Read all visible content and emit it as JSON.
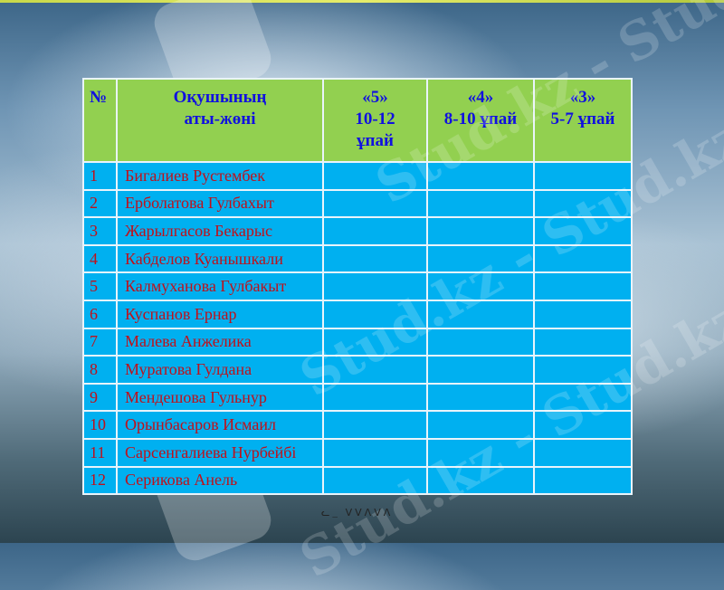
{
  "table": {
    "headers": [
      "№",
      "Оқушының\nаты-жөні",
      "«5»\n10-12\nұпай",
      "«4»\n8-10 ұпай",
      "«3»\n5-7 ұпай"
    ],
    "rows": [
      {
        "num": "1",
        "name": "Бигалиев Рустембек"
      },
      {
        "num": "2",
        "name": "Ерболатова Гулбахыт"
      },
      {
        "num": "3",
        "name": "Жарылгасов Бекарыс"
      },
      {
        "num": "4",
        "name": "Кабделов Куанышкали"
      },
      {
        "num": "5",
        "name": "Калмуханова Гулбакыт"
      },
      {
        "num": "6",
        "name": "Куспанов Ернар"
      },
      {
        "num": "7",
        "name": "Малева Анжелика"
      },
      {
        "num": "8",
        "name": "Муратова Гулдана"
      },
      {
        "num": "9",
        "name": "Мендешова Гульнур"
      },
      {
        "num": "10",
        "name": "Орынбасаров Исмаил"
      },
      {
        "num": "11",
        "name": "Сарсенгалиева Нурбейбі"
      },
      {
        "num": "12",
        "name": "Серикова Анель"
      }
    ]
  },
  "colors": {
    "header_bg": "#92d050",
    "header_text": "#1010e0",
    "row_bg": "#00b0f0",
    "row_text": "#c0101a"
  },
  "watermark": "Stud.kz"
}
